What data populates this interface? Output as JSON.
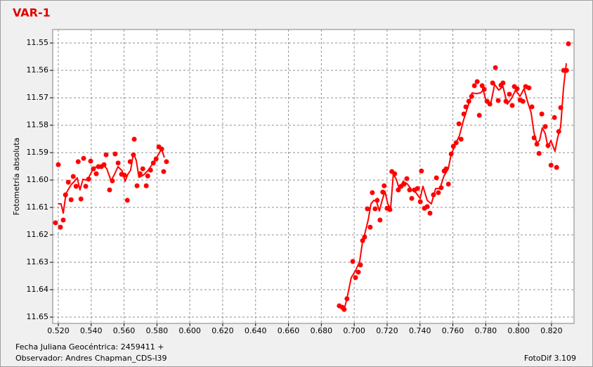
{
  "chart_data": {
    "type": "scatter",
    "title": "VAR-1",
    "ylabel": "Fotometría absoluta",
    "xlabel": "Fecha Juliana Geocéntrica: 2459411 +",
    "observer": "Observador: Andres Chapman_CDS-I39",
    "software": "FotoDif 3.109",
    "xlim": [
      0.5166,
      0.8337
    ],
    "ylim": [
      11.6523,
      11.5451
    ],
    "grid": true,
    "xticks": [
      {
        "value": 0.52,
        "label": "0.520"
      },
      {
        "value": 0.54,
        "label": "0.540"
      },
      {
        "value": 0.56,
        "label": "0.560"
      },
      {
        "value": 0.58,
        "label": "0.580"
      },
      {
        "value": 0.6,
        "label": "0.600"
      },
      {
        "value": 0.62,
        "label": "0.620"
      },
      {
        "value": 0.64,
        "label": "0.640"
      },
      {
        "value": 0.66,
        "label": "0.660"
      },
      {
        "value": 0.68,
        "label": "0.680"
      },
      {
        "value": 0.7,
        "label": "0.700"
      },
      {
        "value": 0.72,
        "label": "0.720"
      },
      {
        "value": 0.74,
        "label": "0.740"
      },
      {
        "value": 0.76,
        "label": "0.760"
      },
      {
        "value": 0.78,
        "label": "0.780"
      },
      {
        "value": 0.8,
        "label": "0.800"
      },
      {
        "value": 0.82,
        "label": "0.820"
      }
    ],
    "yticks": [
      11.55,
      11.56,
      11.57,
      11.58,
      11.59,
      {
        "value": 11.6,
        "label": "11.60"
      },
      11.61,
      11.62,
      11.63,
      11.64,
      11.65
    ],
    "series": [
      {
        "type": "scatter",
        "color": "#ff0000",
        "x": [
          0.5183,
          0.52,
          0.5213,
          0.523,
          0.5244,
          0.5261,
          0.5278,
          0.5291,
          0.5308,
          0.5321,
          0.5338,
          0.5354,
          0.5367,
          0.5384,
          0.5397,
          0.5414,
          0.5431,
          0.5444,
          0.5462,
          0.5478,
          0.5491,
          0.5512,
          0.5529,
          0.5546,
          0.5564,
          0.5585,
          0.5602,
          0.562,
          0.5637,
          0.5657,
          0.5662,
          0.5679,
          0.5697,
          0.5714,
          0.5735,
          0.5744,
          0.5761,
          0.5778,
          0.5795,
          0.5812,
          0.5829,
          0.5841,
          0.5858,
          0.6909,
          0.6927,
          0.6939,
          0.6956,
          0.6991,
          0.7008,
          0.7025,
          0.7038,
          0.7051,
          0.7063,
          0.708,
          0.7097,
          0.711,
          0.7127,
          0.714,
          0.7157,
          0.7174,
          0.7182,
          0.72,
          0.7217,
          0.7229,
          0.7246,
          0.7268,
          0.7285,
          0.7303,
          0.732,
          0.7337,
          0.735,
          0.7367,
          0.7385,
          0.7402,
          0.7409,
          0.7427,
          0.7444,
          0.7461,
          0.7482,
          0.75,
          0.7512,
          0.7529,
          0.7547,
          0.7559,
          0.7573,
          0.759,
          0.7603,
          0.762,
          0.7637,
          0.765,
          0.7667,
          0.7679,
          0.7697,
          0.7714,
          0.7731,
          0.7748,
          0.7761,
          0.7778,
          0.7791,
          0.7808,
          0.7825,
          0.7842,
          0.7859,
          0.7876,
          0.7893,
          0.7905,
          0.7923,
          0.7944,
          0.7961,
          0.7974,
          0.7991,
          0.8009,
          0.8026,
          0.8043,
          0.8063,
          0.8081,
          0.8094,
          0.8111,
          0.8124,
          0.8141,
          0.8162,
          0.8179,
          0.8197,
          0.8218,
          0.8231,
          0.8244,
          0.8256,
          0.8274,
          0.8291,
          0.8303
        ],
        "values": [
          11.6156,
          11.5944,
          11.6172,
          11.6146,
          11.6054,
          11.6008,
          11.6072,
          11.5987,
          11.6023,
          11.5933,
          11.6069,
          11.5921,
          11.6023,
          11.5997,
          11.5931,
          11.5959,
          11.5977,
          11.5951,
          11.5951,
          11.5944,
          11.5908,
          11.6036,
          11.6003,
          11.5905,
          11.5938,
          11.5979,
          11.5982,
          11.6074,
          11.5933,
          11.5908,
          11.5851,
          11.6021,
          11.5977,
          11.5959,
          11.6021,
          11.5985,
          11.5964,
          11.5938,
          11.5923,
          11.5879,
          11.5887,
          11.5969,
          11.5933,
          11.6459,
          11.6464,
          11.6472,
          11.6433,
          11.6297,
          11.6356,
          11.6336,
          11.631,
          11.6221,
          11.6208,
          11.6105,
          11.6172,
          11.6046,
          11.6105,
          11.6074,
          11.6146,
          11.6044,
          11.6021,
          11.6103,
          11.6108,
          11.5969,
          11.5977,
          11.6036,
          11.6023,
          11.6015,
          11.5995,
          11.6036,
          11.6067,
          11.6036,
          11.6031,
          11.6079,
          11.5967,
          11.6103,
          11.6097,
          11.6121,
          11.6054,
          11.5992,
          11.6046,
          11.6028,
          11.5967,
          11.5959,
          11.6015,
          11.5905,
          11.5877,
          11.5864,
          11.5795,
          11.5851,
          11.5759,
          11.5733,
          11.5713,
          11.5695,
          11.5656,
          11.5641,
          11.5764,
          11.5656,
          11.5669,
          11.5713,
          11.5723,
          11.5646,
          11.559,
          11.571,
          11.5654,
          11.5646,
          11.5713,
          11.5687,
          11.5728,
          11.5659,
          11.5667,
          11.5708,
          11.5713,
          11.5659,
          11.5664,
          11.5733,
          11.5846,
          11.5869,
          11.5903,
          11.5759,
          11.5805,
          11.5874,
          11.5946,
          11.5772,
          11.5954,
          11.5823,
          11.5736,
          11.56,
          11.56,
          11.5503
        ]
      },
      {
        "type": "line",
        "color": "#ff0000",
        "x": [
          0.52,
          0.5217,
          0.523,
          0.5247,
          0.5264,
          0.5281,
          0.5298,
          0.5315,
          0.5332,
          0.535,
          0.5367,
          0.5384,
          0.5401,
          0.5418,
          0.5444,
          0.5478,
          0.5495,
          0.5521,
          0.5546,
          0.5563,
          0.5589,
          0.5606,
          0.5623,
          0.564,
          0.5657,
          0.5674,
          0.5691,
          0.5717,
          0.5743,
          0.5777,
          0.5803,
          0.5828,
          0.5845,
          null,
          0.6926,
          0.6939,
          0.6956,
          0.6982,
          0.7008,
          0.7033,
          0.705,
          0.7067,
          0.7085,
          0.7102,
          0.7119,
          0.7136,
          0.7153,
          0.717,
          0.7187,
          0.7204,
          0.7221,
          0.7238,
          0.7256,
          0.7273,
          0.7298,
          0.7324,
          0.735,
          0.7375,
          0.7401,
          0.7418,
          0.7444,
          0.7469,
          0.7495,
          0.7521,
          0.7546,
          0.7572,
          0.7589,
          0.7615,
          0.764,
          0.7666,
          0.7691,
          0.7717,
          0.7743,
          0.7768,
          0.7785,
          0.7803,
          0.7828,
          0.7854,
          0.7879,
          0.7905,
          0.7931,
          0.7956,
          0.7982,
          0.8008,
          0.8033,
          0.8059,
          0.8076,
          0.8093,
          0.811,
          0.8127,
          0.8144,
          0.8162,
          0.8179,
          0.8196,
          0.8221,
          0.8238,
          0.8256,
          0.8273,
          0.829
        ],
        "values": [
          11.6087,
          11.6087,
          11.6121,
          11.6049,
          11.6031,
          11.6015,
          11.6005,
          11.5992,
          11.6036,
          11.5997,
          11.6,
          11.5992,
          11.5972,
          11.5954,
          11.5951,
          11.5946,
          11.5959,
          11.6003,
          11.5974,
          11.5951,
          11.5967,
          11.6005,
          11.5979,
          11.5964,
          11.5903,
          11.5928,
          11.599,
          11.5982,
          11.5967,
          11.5938,
          11.5913,
          11.5887,
          11.5918,
          null,
          11.6459,
          11.6472,
          11.6431,
          11.6356,
          11.6331,
          11.6297,
          11.6228,
          11.619,
          11.6146,
          11.6087,
          11.6074,
          11.6079,
          11.6113,
          11.6074,
          11.6041,
          11.6087,
          11.6105,
          11.5979,
          11.5997,
          11.6031,
          11.6005,
          11.6015,
          11.6036,
          11.6046,
          11.6067,
          11.6023,
          11.6074,
          11.6087,
          11.6031,
          11.6031,
          11.5985,
          11.5959,
          11.5908,
          11.5869,
          11.5838,
          11.5779,
          11.5733,
          11.5682,
          11.5685,
          11.5682,
          11.5672,
          11.5713,
          11.5728,
          11.5651,
          11.5672,
          11.5659,
          11.5723,
          11.5703,
          11.5672,
          11.5695,
          11.5667,
          11.5723,
          11.5754,
          11.5826,
          11.5864,
          11.5856,
          11.581,
          11.5831,
          11.5882,
          11.5856,
          11.5895,
          11.5844,
          11.5805,
          11.5664,
          11.5574
        ]
      }
    ]
  }
}
